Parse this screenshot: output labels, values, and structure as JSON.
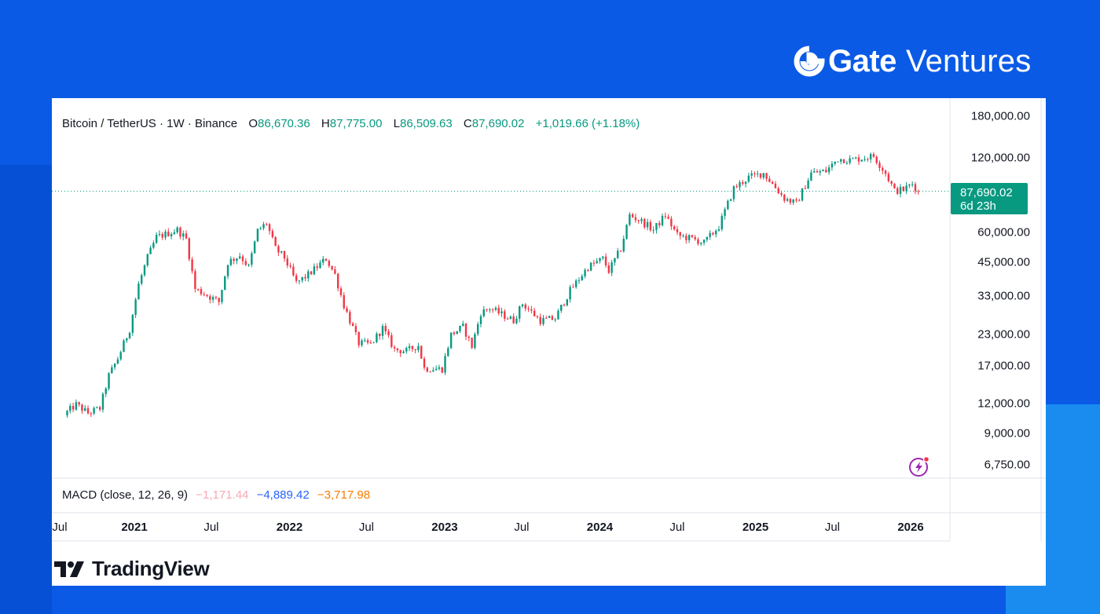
{
  "brand": {
    "name_bold": "Gate",
    "name_light": "Ventures",
    "icon": "gate-logo-icon"
  },
  "header": {
    "symbol": "Bitcoin / TetherUS · 1W · Binance",
    "o_label": "O",
    "o_value": "86,670.36",
    "h_label": "H",
    "h_value": "87,775.00",
    "l_label": "L",
    "l_value": "86,509.63",
    "c_label": "C",
    "c_value": "87,690.02",
    "change": "+1,019.66 (+1.18%)"
  },
  "price_tag": {
    "price": "87,690.02",
    "countdown": "6d 23h"
  },
  "macd": {
    "label": "MACD (close, 12, 26, 9)",
    "v1": "−1,171.44",
    "v2": "−4,889.42",
    "v3": "−3,717.98"
  },
  "footer": {
    "tradingview": "TradingView"
  },
  "colors": {
    "up": "#089981",
    "down": "#f23645",
    "background": "#0a5ae6",
    "accent": "#1a8cf0"
  },
  "chart_data": {
    "type": "candlestick",
    "title": "Bitcoin / TetherUS · 1W · Binance",
    "y_scale": "log",
    "y_ticks": [
      {
        "value": 180000,
        "label": "180,000.00"
      },
      {
        "value": 120000,
        "label": "120,000.00"
      },
      {
        "value": 60000,
        "label": "60,000.00"
      },
      {
        "value": 45000,
        "label": "45,000.00"
      },
      {
        "value": 33000,
        "label": "33,000.00"
      },
      {
        "value": 23000,
        "label": "23,000.00"
      },
      {
        "value": 17000,
        "label": "17,000.00"
      },
      {
        "value": 12000,
        "label": "12,000.00"
      },
      {
        "value": 9000,
        "label": "9,000.00"
      },
      {
        "value": 6750,
        "label": "6,750.00"
      }
    ],
    "x_ticks": [
      {
        "date": "2020-07-01",
        "label": "Jul",
        "bold": false
      },
      {
        "date": "2021-01-01",
        "label": "2021",
        "bold": true
      },
      {
        "date": "2021-07-01",
        "label": "Jul",
        "bold": false
      },
      {
        "date": "2022-01-01",
        "label": "2022",
        "bold": true
      },
      {
        "date": "2022-07-01",
        "label": "Jul",
        "bold": false
      },
      {
        "date": "2023-01-01",
        "label": "2023",
        "bold": true
      },
      {
        "date": "2023-07-01",
        "label": "Jul",
        "bold": false
      },
      {
        "date": "2024-01-01",
        "label": "2024",
        "bold": true
      },
      {
        "date": "2024-07-01",
        "label": "Jul",
        "bold": false
      },
      {
        "date": "2025-01-01",
        "label": "2025",
        "bold": true
      },
      {
        "date": "2025-07-01",
        "label": "Jul",
        "bold": false
      },
      {
        "date": "2026-01-01",
        "label": "2026",
        "bold": true
      }
    ],
    "last_price": 87690.02,
    "series": [
      {
        "name": "BTCUSDT weekly close",
        "points": [
          {
            "date": "2020-07-27",
            "close": 11000
          },
          {
            "date": "2020-08-17",
            "close": 11800
          },
          {
            "date": "2020-09-14",
            "close": 10900
          },
          {
            "date": "2020-10-12",
            "close": 11400
          },
          {
            "date": "2020-11-02",
            "close": 15500
          },
          {
            "date": "2020-11-23",
            "close": 18200
          },
          {
            "date": "2020-12-21",
            "close": 24000
          },
          {
            "date": "2021-01-11",
            "close": 36500
          },
          {
            "date": "2021-02-01",
            "close": 47000
          },
          {
            "date": "2021-02-22",
            "close": 57000
          },
          {
            "date": "2021-03-15",
            "close": 58500
          },
          {
            "date": "2021-04-12",
            "close": 61000
          },
          {
            "date": "2021-05-03",
            "close": 56000
          },
          {
            "date": "2021-05-24",
            "close": 35000
          },
          {
            "date": "2021-06-21",
            "close": 33000
          },
          {
            "date": "2021-07-19",
            "close": 31000
          },
          {
            "date": "2021-08-09",
            "close": 45000
          },
          {
            "date": "2021-09-06",
            "close": 48000
          },
          {
            "date": "2021-09-27",
            "close": 43000
          },
          {
            "date": "2021-10-18",
            "close": 60500
          },
          {
            "date": "2021-11-08",
            "close": 65000
          },
          {
            "date": "2021-11-29",
            "close": 51000
          },
          {
            "date": "2021-12-20",
            "close": 47000
          },
          {
            "date": "2022-01-17",
            "close": 37000
          },
          {
            "date": "2022-02-14",
            "close": 40000
          },
          {
            "date": "2022-03-28",
            "close": 46500
          },
          {
            "date": "2022-04-18",
            "close": 40000
          },
          {
            "date": "2022-05-09",
            "close": 30000
          },
          {
            "date": "2022-06-13",
            "close": 21000
          },
          {
            "date": "2022-07-11",
            "close": 20800
          },
          {
            "date": "2022-08-08",
            "close": 24200
          },
          {
            "date": "2022-09-05",
            "close": 19800
          },
          {
            "date": "2022-10-03",
            "close": 19500
          },
          {
            "date": "2022-10-31",
            "close": 20600
          },
          {
            "date": "2022-11-14",
            "close": 16600
          },
          {
            "date": "2022-12-26",
            "close": 16500
          },
          {
            "date": "2023-01-16",
            "close": 22800
          },
          {
            "date": "2023-02-13",
            "close": 24500
          },
          {
            "date": "2023-03-06",
            "close": 20400
          },
          {
            "date": "2023-03-27",
            "close": 28000
          },
          {
            "date": "2023-04-17",
            "close": 29200
          },
          {
            "date": "2023-06-12",
            "close": 26000
          },
          {
            "date": "2023-07-03",
            "close": 30500
          },
          {
            "date": "2023-08-14",
            "close": 26000
          },
          {
            "date": "2023-09-18",
            "close": 26500
          },
          {
            "date": "2023-10-23",
            "close": 34500
          },
          {
            "date": "2023-12-04",
            "close": 43000
          },
          {
            "date": "2024-01-08",
            "close": 46500
          },
          {
            "date": "2024-01-22",
            "close": 41500
          },
          {
            "date": "2024-02-19",
            "close": 51000
          },
          {
            "date": "2024-03-11",
            "close": 70000
          },
          {
            "date": "2024-04-08",
            "close": 66000
          },
          {
            "date": "2024-05-06",
            "close": 61000
          },
          {
            "date": "2024-06-03",
            "close": 70000
          },
          {
            "date": "2024-07-01",
            "close": 58000
          },
          {
            "date": "2024-08-05",
            "close": 56000
          },
          {
            "date": "2024-09-02",
            "close": 54000
          },
          {
            "date": "2024-10-07",
            "close": 63000
          },
          {
            "date": "2024-11-11",
            "close": 90000
          },
          {
            "date": "2024-12-16",
            "close": 100000
          },
          {
            "date": "2025-01-20",
            "close": 104000
          },
          {
            "date": "2025-03-10",
            "close": 82000
          },
          {
            "date": "2025-04-07",
            "close": 78000
          },
          {
            "date": "2025-05-12",
            "close": 104000
          },
          {
            "date": "2025-06-16",
            "close": 106000
          },
          {
            "date": "2025-07-14",
            "close": 119000
          },
          {
            "date": "2025-08-11",
            "close": 117500
          },
          {
            "date": "2025-10-06",
            "close": 122000
          },
          {
            "date": "2025-11-03",
            "close": 104000
          },
          {
            "date": "2025-11-24",
            "close": 88000
          },
          {
            "date": "2025-12-15",
            "close": 89000
          },
          {
            "date": "2026-01-05",
            "close": 94000
          },
          {
            "date": "2026-01-19",
            "close": 87690.02
          }
        ]
      }
    ]
  }
}
